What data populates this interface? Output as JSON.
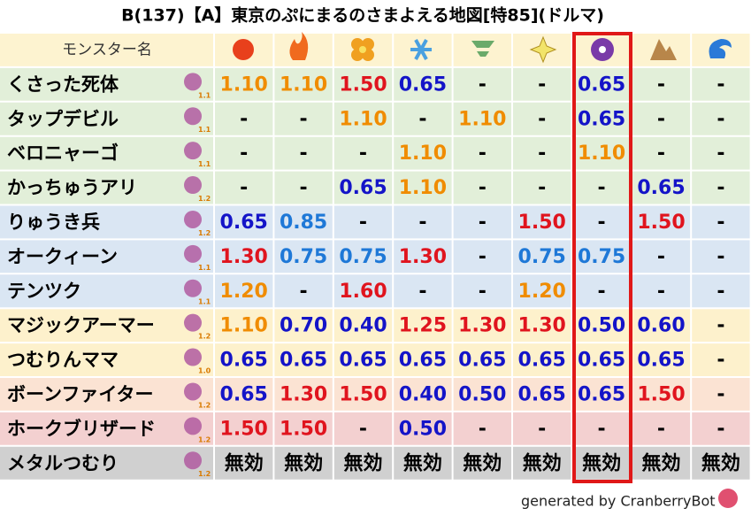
{
  "title": "B(137)【A】東京のぷにまるのさまよえる地図[特85](ドルマ)",
  "header": {
    "name": "モンスター名"
  },
  "rows": [
    {
      "name": "くさった死体",
      "level": "1.1",
      "cells": [
        "1.10",
        "1.10",
        "1.50",
        "0.65",
        "-",
        "-",
        "0.65",
        "-",
        "-"
      ]
    },
    {
      "name": "タップデビル",
      "level": "1.1",
      "cells": [
        "-",
        "-",
        "1.10",
        "-",
        "1.10",
        "-",
        "0.65",
        "-",
        "-"
      ]
    },
    {
      "name": "ベロニャーゴ",
      "level": "1.1",
      "cells": [
        "-",
        "-",
        "-",
        "1.10",
        "-",
        "-",
        "1.10",
        "-",
        "-"
      ]
    },
    {
      "name": "かっちゅうアリ",
      "level": "1.2",
      "cells": [
        "-",
        "-",
        "0.65",
        "1.10",
        "-",
        "-",
        "-",
        "0.65",
        "-"
      ]
    },
    {
      "name": "りゅうき兵",
      "level": "1.2",
      "cells": [
        "0.65",
        "0.85",
        "-",
        "-",
        "-",
        "1.50",
        "-",
        "1.50",
        "-"
      ]
    },
    {
      "name": "オークィーン",
      "level": "1.1",
      "cells": [
        "1.30",
        "0.75",
        "0.75",
        "1.30",
        "-",
        "0.75",
        "0.75",
        "-",
        "-"
      ]
    },
    {
      "name": "テンツク",
      "level": "1.1",
      "cells": [
        "1.20",
        "-",
        "1.60",
        "-",
        "-",
        "1.20",
        "-",
        "-",
        "-"
      ]
    },
    {
      "name": "マジックアーマー",
      "level": "1.2",
      "cells": [
        "1.10",
        "0.70",
        "0.40",
        "1.25",
        "1.30",
        "1.30",
        "0.50",
        "0.60",
        "-"
      ]
    },
    {
      "name": "つむりんママ",
      "level": "1.0",
      "cells": [
        "0.65",
        "0.65",
        "0.65",
        "0.65",
        "0.65",
        "0.65",
        "0.65",
        "0.65",
        "-"
      ]
    },
    {
      "name": "ボーンファイター",
      "level": "1.2",
      "cells": [
        "0.65",
        "1.30",
        "1.50",
        "0.40",
        "0.50",
        "0.65",
        "0.65",
        "1.50",
        "-"
      ]
    },
    {
      "name": "ホークブリザード",
      "level": "1.2",
      "cells": [
        "1.50",
        "1.50",
        "-",
        "0.50",
        "-",
        "-",
        "-",
        "-",
        "-"
      ]
    },
    {
      "name": "メタルつむり",
      "level": "1.2",
      "cells": [
        "無効",
        "無効",
        "無効",
        "無効",
        "無効",
        "無効",
        "無効",
        "無効",
        "無効"
      ]
    }
  ],
  "footer": "generated by CranberryBot"
}
